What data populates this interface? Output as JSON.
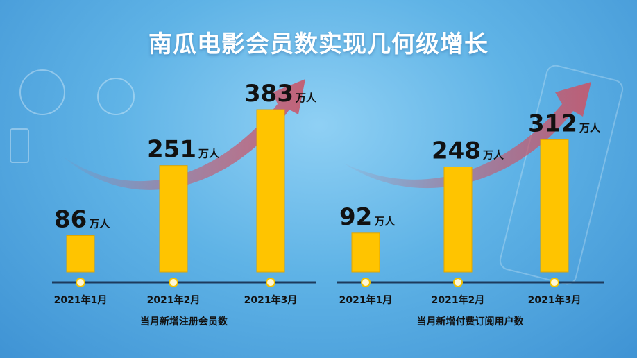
{
  "title": "南瓜电影会员数实现几何级增长",
  "unit": "万人",
  "colors": {
    "bar": "#ffc400",
    "bar_edge": "#e0a600",
    "arrow": "#c8566a",
    "axis": "#1d3a5c"
  },
  "chart_data": [
    {
      "type": "bar",
      "categories": [
        "2021年1月",
        "2021年2月",
        "2021年3月"
      ],
      "values": [
        86,
        251,
        383
      ],
      "xlabel": "当月新增注册会员数",
      "ylabel": "",
      "ylim": [
        0,
        400
      ],
      "grid": false
    },
    {
      "type": "bar",
      "categories": [
        "2021年1月",
        "2021年2月",
        "2021年3月"
      ],
      "values": [
        92,
        248,
        312
      ],
      "xlabel": "当月新增付费订阅用户数",
      "ylabel": "",
      "ylim": [
        0,
        400
      ],
      "grid": false
    }
  ]
}
